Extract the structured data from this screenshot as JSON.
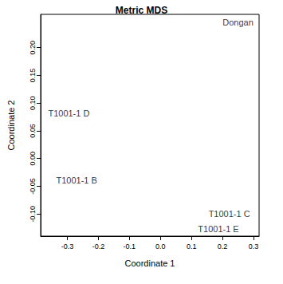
{
  "chart_data": {
    "type": "scatter",
    "title": "Metric MDS",
    "x_label": "Coordinate 1",
    "y_label": "Coordinate 2",
    "labels": [
      "Dongan",
      "T1001-1 D",
      "T1001-1 B",
      "T1001-1 C",
      "T1001-1 E"
    ],
    "x": [
      0.25,
      -0.295,
      -0.27,
      0.222,
      0.187
    ],
    "values": [
      0.246,
      0.081,
      -0.039,
      -0.1,
      -0.127
    ],
    "color": "#000000",
    "marker": "none",
    "xlim": [
      -0.386,
      0.318
    ],
    "ylim": [
      -0.14,
      0.26
    ],
    "xticks": [
      -0.3,
      -0.2,
      -0.1,
      {
        "value": 0,
        "label": "0.0"
      },
      0.1,
      0.2,
      0.3
    ],
    "yticks": [
      {
        "value": -0.1,
        "label": "-0.10"
      },
      {
        "value": -0.05,
        "label": "-0.05"
      },
      {
        "value": 0,
        "label": "0.00"
      },
      {
        "value": 0.05,
        "label": "0.05"
      },
      {
        "value": 0.1,
        "label": "0.10"
      },
      {
        "value": 0.15,
        "label": "0.15"
      },
      {
        "value": 0.2,
        "label": "0.20"
      }
    ],
    "grid": false
  }
}
